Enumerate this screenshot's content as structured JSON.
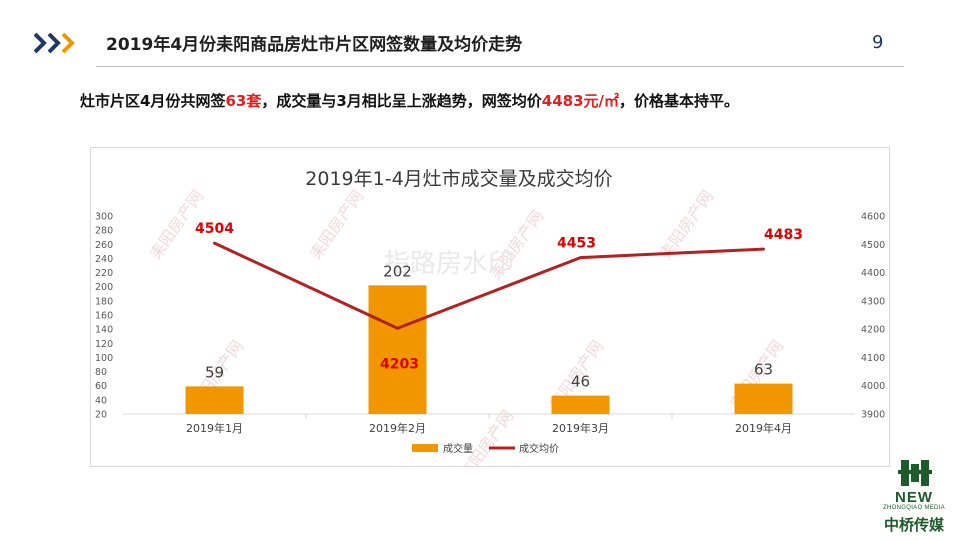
{
  "header": {
    "title": "2019年4月份耒阳商品房灶市片区网签数量及均价走势",
    "page_number": "9"
  },
  "summary": {
    "part1": "灶市片区4月份共网签",
    "count": "63套",
    "part2": "，成交量与3月相比呈上涨趋势，网签均价",
    "price": "4483元/㎡",
    "part3": "，价格基本持平。"
  },
  "watermark": {
    "brand": "耒阳房产网",
    "abbr": "LYFC",
    "center_text": "指路房水印"
  },
  "logo": {
    "en": "NEW",
    "en_sub": "ZHONGQIAO MEDIA",
    "cn": "中桥传媒"
  },
  "colors": {
    "bar": "#f29600",
    "line": "#b22222",
    "price_label": "#e00000",
    "arrow_blue": "#1f3864",
    "arrow_orange": "#f29600",
    "logo_green": "#1e5b2a"
  },
  "chart_data": {
    "type": "bar+line",
    "title": "2019年1-4月灶市成交量及成交均价",
    "categories": [
      "2019年1月",
      "2019年2月",
      "2019年3月",
      "2019年4月"
    ],
    "series": [
      {
        "name": "成交量",
        "type": "bar",
        "axis": "left",
        "values": [
          59,
          202,
          46,
          63
        ]
      },
      {
        "name": "成交均价",
        "type": "line",
        "axis": "right",
        "values": [
          4504,
          4203,
          4453,
          4483
        ]
      }
    ],
    "y_left": {
      "min": 20,
      "max": 300,
      "step": 20
    },
    "y_right": {
      "min": 3900,
      "max": 4600,
      "step": 100
    },
    "grid": false,
    "legend": "bottom"
  }
}
